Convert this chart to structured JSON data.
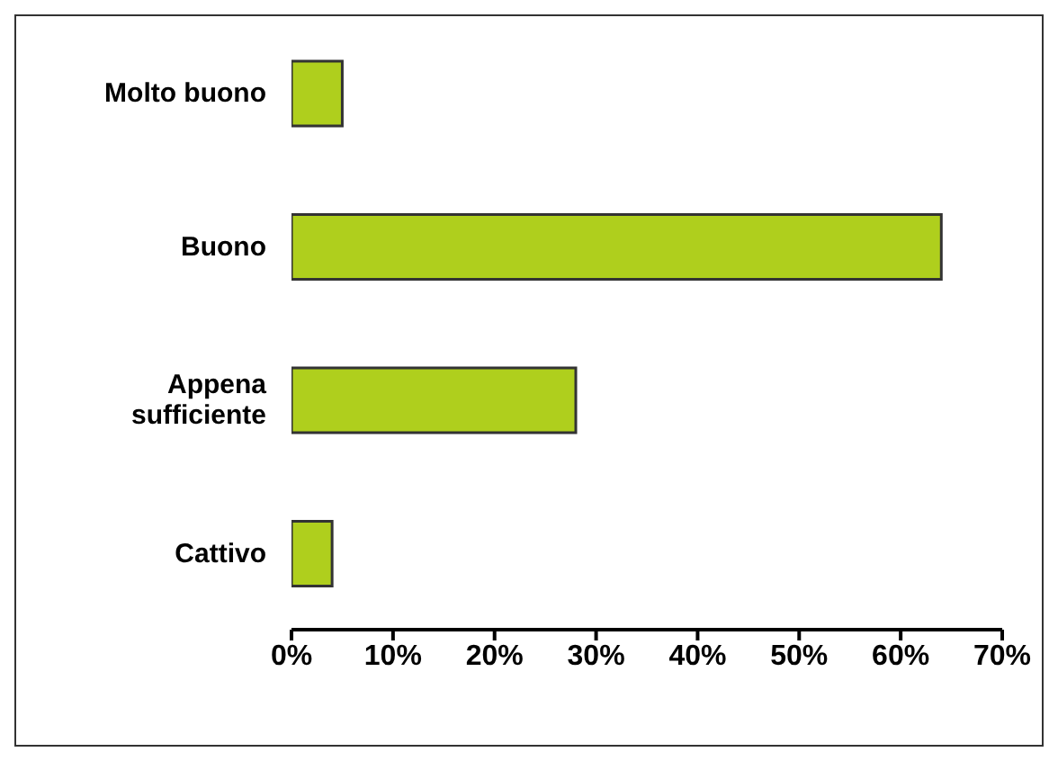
{
  "chart_data": {
    "type": "bar",
    "orientation": "horizontal",
    "categories": [
      "Molto buono",
      "Buono",
      "Appena sufficiente",
      "Cattivo"
    ],
    "values": [
      5,
      64,
      28,
      4
    ],
    "color": "#afcf1d",
    "xlim": [
      0,
      70
    ],
    "xticks": [
      {
        "value": 0,
        "label": "0%"
      },
      {
        "value": 10,
        "label": "10%"
      },
      {
        "value": 20,
        "label": "20%"
      },
      {
        "value": 30,
        "label": "30%"
      },
      {
        "value": 40,
        "label": "40%"
      },
      {
        "value": 50,
        "label": "50%"
      },
      {
        "value": 60,
        "label": "60%"
      },
      {
        "value": 70,
        "label": "70%"
      }
    ],
    "grid": false,
    "legend": false
  }
}
